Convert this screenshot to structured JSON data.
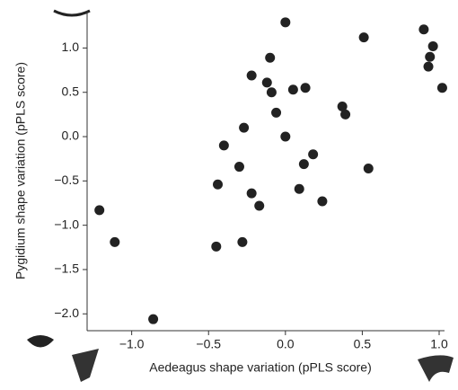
{
  "chart_data": {
    "type": "scatter",
    "x_label": "Aedeagus shape variation (pPLS score)",
    "y_label": "Pygidium shape variation (pPLS score)",
    "x": [
      0.0,
      0.9,
      0.51,
      0.96,
      0.94,
      0.93,
      1.02,
      -0.1,
      -0.22,
      -0.12,
      -0.09,
      -0.06,
      0.05,
      0.13,
      0.37,
      0.39,
      -0.27,
      0.0,
      -0.4,
      -0.3,
      0.18,
      0.12,
      0.54,
      -0.44,
      -0.22,
      -0.17,
      0.09,
      0.24,
      -1.21,
      -1.11,
      -0.45,
      -0.28,
      -0.86
    ],
    "y": [
      1.29,
      1.21,
      1.12,
      1.02,
      0.9,
      0.79,
      0.55,
      0.89,
      0.69,
      0.61,
      0.5,
      0.27,
      0.53,
      0.55,
      0.34,
      0.25,
      0.1,
      0.0,
      -0.1,
      -0.34,
      -0.2,
      -0.31,
      -0.36,
      -0.54,
      -0.64,
      -0.78,
      -0.59,
      -0.73,
      -0.83,
      -1.19,
      -1.24,
      -1.19,
      -2.06
    ],
    "color": "#222222",
    "xlim": [
      -1.29,
      1.035
    ],
    "ylim": [
      -2.19,
      1.42
    ],
    "xticks": [
      {
        "value": -1.0,
        "label": "−1.0"
      },
      {
        "value": -0.5,
        "label": "−0.5"
      },
      {
        "value": 0.0,
        "label": "0.0"
      },
      {
        "value": 0.5,
        "label": "0.5"
      },
      {
        "value": 1.0,
        "label": "1.0"
      }
    ],
    "yticks": [
      {
        "value": -2.0,
        "label": "−2.0"
      },
      {
        "value": -1.5,
        "label": "−1.5"
      },
      {
        "value": -1.0,
        "label": "−1.0"
      },
      {
        "value": -0.5,
        "label": "−0.5"
      },
      {
        "value": 0.0,
        "label": "0.0"
      },
      {
        "value": 0.5,
        "label": "0.5"
      },
      {
        "value": 1.0,
        "label": "1.0"
      }
    ]
  }
}
